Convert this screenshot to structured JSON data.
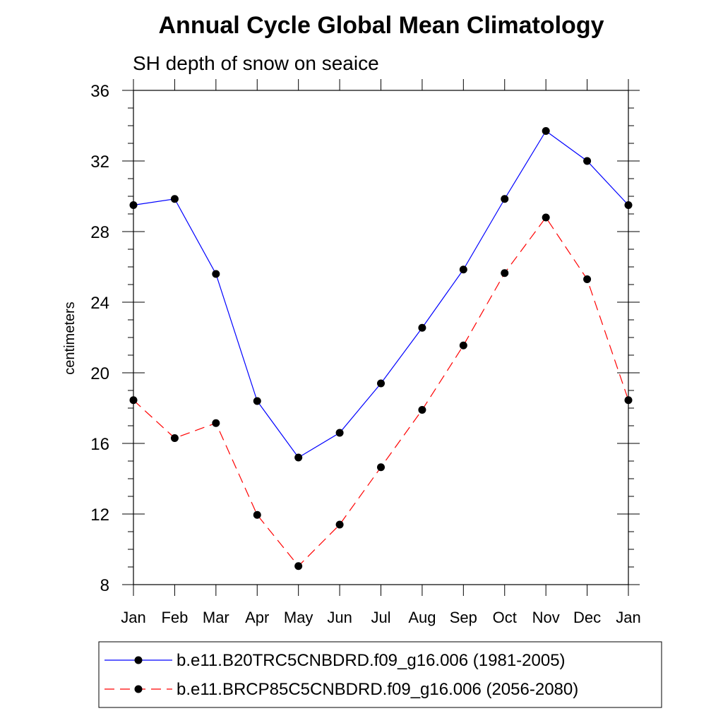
{
  "chart_data": {
    "type": "line",
    "title": "Annual Cycle Global Mean Climatology",
    "subtitle": "SH depth of snow on seaice",
    "xlabel": "",
    "ylabel": "centimeters",
    "categories": [
      "Jan",
      "Feb",
      "Mar",
      "Apr",
      "May",
      "Jun",
      "Jul",
      "Aug",
      "Sep",
      "Oct",
      "Nov",
      "Dec",
      "Jan"
    ],
    "ylim": [
      8,
      36
    ],
    "yticks": [
      8,
      12,
      16,
      20,
      24,
      28,
      32,
      36
    ],
    "series": [
      {
        "name": "b.e11.B20TRC5CNBDRD.f09_g16.006 (1981-2005)",
        "color": "#0000ff",
        "style": "solid",
        "values": [
          29.5,
          29.85,
          25.6,
          18.4,
          15.2,
          16.6,
          19.4,
          22.55,
          25.85,
          29.85,
          33.7,
          32.0,
          29.5
        ]
      },
      {
        "name": "b.e11.BRCP85C5CNBDRD.f09_g16.006 (2056-2080)",
        "color": "#ff0000",
        "style": "dashed",
        "values": [
          18.45,
          16.3,
          17.15,
          11.95,
          9.05,
          11.4,
          14.65,
          17.9,
          21.55,
          25.65,
          28.8,
          25.3,
          18.45
        ]
      }
    ],
    "legend_position": "bottom"
  }
}
